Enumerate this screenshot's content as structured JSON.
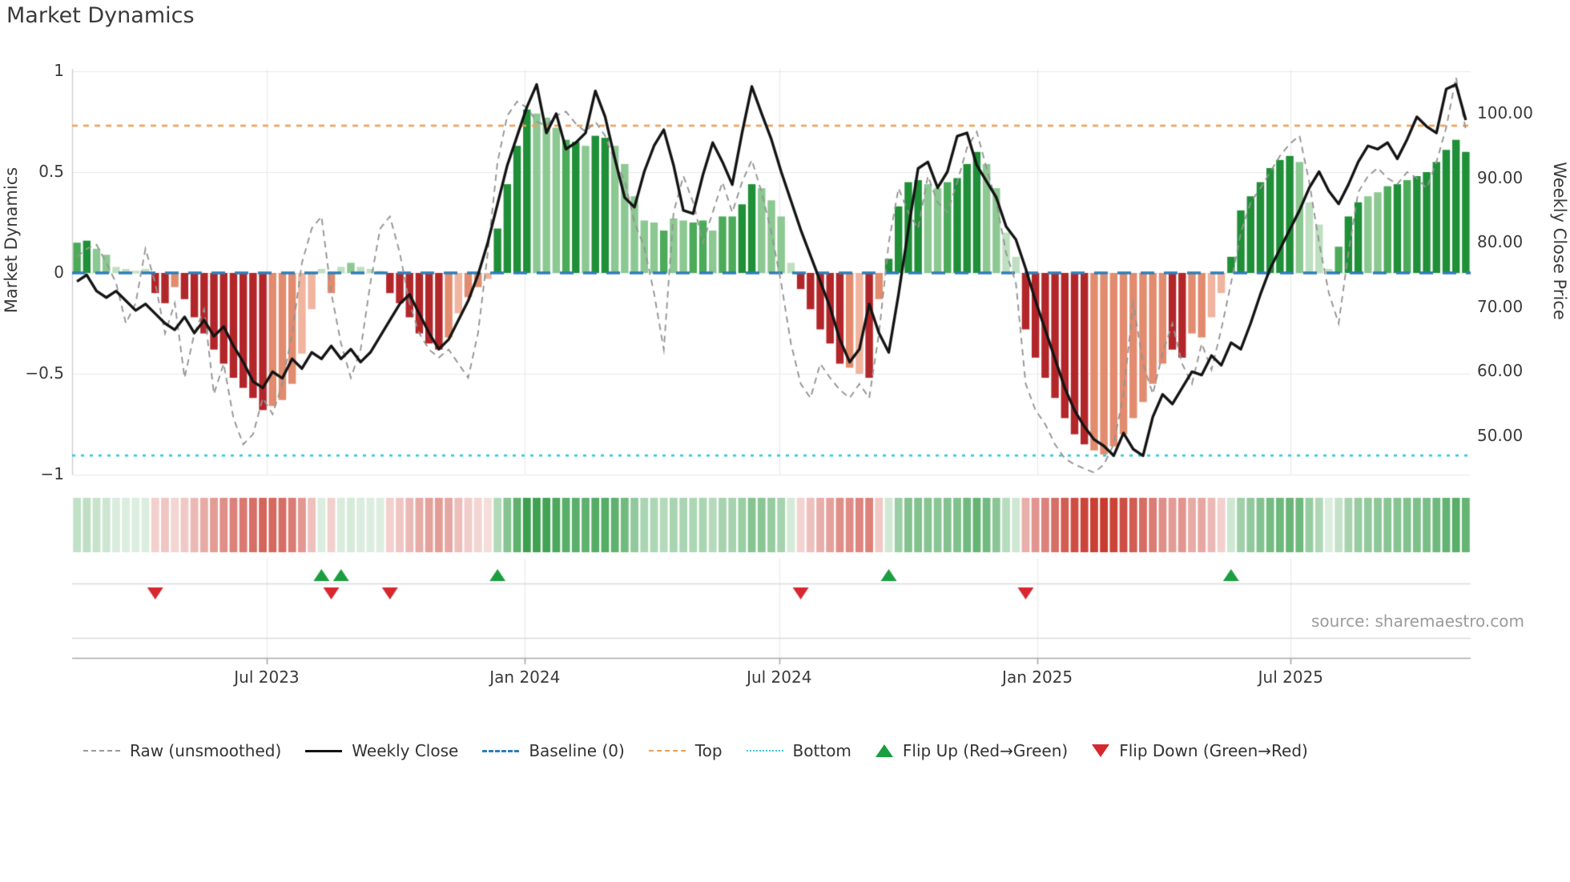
{
  "title": "Market Dynamics",
  "source": "source: sharemaestro.com",
  "axes": {
    "y_left": {
      "label": "Market Dynamics",
      "ticks": [
        "1",
        "0.5",
        "0",
        "−0.5",
        "−1"
      ],
      "tick_values": [
        1,
        0.5,
        0,
        -0.5,
        -1
      ]
    },
    "y_right": {
      "label": "Weekly Close Price",
      "ticks": [
        "100.00",
        "90.00",
        "80.00",
        "70.00",
        "60.00",
        "50.00"
      ],
      "tick_values": [
        100,
        90,
        80,
        70,
        60,
        50
      ]
    },
    "x": {
      "ticks": [
        "Jul 2023",
        "Jan 2024",
        "Jul 2024",
        "Jan 2025",
        "Jul 2025"
      ],
      "tick_weeks": [
        19.9,
        46.3,
        72.3,
        98.7,
        124.6
      ]
    }
  },
  "legend": {
    "items": [
      {
        "label": "Raw (unsmoothed)",
        "kind": "raw"
      },
      {
        "label": "Weekly Close",
        "kind": "close"
      },
      {
        "label": "Baseline (0)",
        "kind": "base"
      },
      {
        "label": "Top",
        "kind": "top"
      },
      {
        "label": "Bottom",
        "kind": "bottom"
      },
      {
        "label": "Flip Up (Red→Green)",
        "kind": "flip-up"
      },
      {
        "label": "Flip Down (Green→Red)",
        "kind": "flip-down"
      }
    ]
  },
  "palette": {
    "bar_shades": {
      "G": "#1f8f38",
      "g": "#4bab59",
      "l": "#8cc892",
      "e": "#bedfc0",
      "R": "#b2262a",
      "r": "#e28b6e",
      "p": "#f0b49f"
    },
    "baseline": "#2e7eb8",
    "top_line": "#f0a058",
    "bottom_line": "#35c8dc",
    "raw_line": "#949494",
    "price_line": "#141414",
    "flip_up": "#1a9e3f",
    "flip_down": "#d7282f",
    "grid": "#e9e9e9",
    "spine": "#a8a8a8",
    "lane_line": "#d9d9d9",
    "heat_green": [
      40,
      150,
      60
    ],
    "heat_red": [
      200,
      60,
      48
    ]
  },
  "chart_data": {
    "type": "bar+line combo with heatmap strip and flip markers",
    "weeks": 143,
    "ylim": [
      -1,
      1
    ],
    "baseline_value": 0,
    "top_level": 0.73,
    "bottom_level": -0.905,
    "price_axis": {
      "ref_price": 100,
      "ref_osc": 0.79,
      "osc_per_price": 0.032
    },
    "osc": [
      0.15,
      0.16,
      0.12,
      0.09,
      0.03,
      0.02,
      0.01,
      0.02,
      -0.1,
      -0.15,
      -0.07,
      -0.13,
      -0.22,
      -0.3,
      -0.38,
      -0.45,
      -0.52,
      -0.57,
      -0.62,
      -0.68,
      -0.66,
      -0.63,
      -0.55,
      -0.4,
      -0.18,
      0.02,
      -0.1,
      0.03,
      0.05,
      0.03,
      0.02,
      0.01,
      -0.1,
      -0.15,
      -0.22,
      -0.3,
      -0.35,
      -0.38,
      -0.32,
      -0.2,
      -0.12,
      -0.07,
      -0.03,
      0.22,
      0.44,
      0.63,
      0.81,
      0.79,
      0.77,
      0.72,
      0.66,
      0.65,
      0.63,
      0.68,
      0.67,
      0.63,
      0.54,
      0.38,
      0.26,
      0.25,
      0.21,
      0.27,
      0.26,
      0.25,
      0.26,
      0.21,
      0.28,
      0.28,
      0.34,
      0.44,
      0.42,
      0.36,
      0.28,
      0.05,
      -0.08,
      -0.18,
      -0.28,
      -0.35,
      -0.45,
      -0.47,
      -0.5,
      -0.52,
      -0.13,
      0.07,
      0.33,
      0.45,
      0.46,
      0.44,
      0.42,
      0.45,
      0.47,
      0.54,
      0.6,
      0.54,
      0.42,
      0.2,
      0.08,
      -0.28,
      -0.42,
      -0.52,
      -0.62,
      -0.72,
      -0.8,
      -0.85,
      -0.88,
      -0.9,
      -0.86,
      -0.8,
      -0.72,
      -0.64,
      -0.55,
      -0.45,
      -0.38,
      -0.42,
      -0.3,
      -0.32,
      -0.22,
      -0.1,
      0.08,
      0.31,
      0.38,
      0.45,
      0.52,
      0.56,
      0.58,
      0.55,
      0.35,
      0.24,
      0.02,
      0.13,
      0.28,
      0.35,
      0.38,
      0.4,
      0.43,
      0.44,
      0.46,
      0.48,
      0.5,
      0.55,
      0.61,
      0.66,
      0.6
    ],
    "bar_shade": [
      "g",
      "G",
      "l",
      "l",
      "e",
      "e",
      "e",
      "e",
      "R",
      "R",
      "r",
      "R",
      "R",
      "R",
      "R",
      "R",
      "R",
      "R",
      "R",
      "R",
      "r",
      "r",
      "r",
      "p",
      "p",
      "e",
      "r",
      "e",
      "l",
      "e",
      "e",
      "e",
      "R",
      "R",
      "R",
      "R",
      "R",
      "R",
      "r",
      "p",
      "r",
      "r",
      "p",
      "G",
      "G",
      "G",
      "G",
      "l",
      "l",
      "l",
      "g",
      "G",
      "l",
      "G",
      "G",
      "l",
      "l",
      "l",
      "l",
      "l",
      "g",
      "l",
      "l",
      "g",
      "g",
      "l",
      "g",
      "g",
      "G",
      "G",
      "l",
      "l",
      "l",
      "e",
      "R",
      "R",
      "R",
      "R",
      "R",
      "r",
      "p",
      "R",
      "r",
      "G",
      "G",
      "G",
      "G",
      "l",
      "l",
      "g",
      "G",
      "G",
      "G",
      "l",
      "l",
      "e",
      "e",
      "R",
      "R",
      "R",
      "R",
      "R",
      "R",
      "R",
      "r",
      "r",
      "r",
      "r",
      "r",
      "r",
      "r",
      "r",
      "R",
      "R",
      "r",
      "r",
      "p",
      "p",
      "G",
      "G",
      "G",
      "G",
      "G",
      "G",
      "G",
      "l",
      "e",
      "e",
      "e",
      "g",
      "G",
      "G",
      "l",
      "l",
      "g",
      "G",
      "g",
      "G",
      "G",
      "G",
      "G",
      "G",
      "G"
    ],
    "raw": [
      0.08,
      0.12,
      0.14,
      0.05,
      -0.05,
      -0.25,
      -0.15,
      0.12,
      -0.05,
      -0.3,
      -0.15,
      -0.52,
      -0.3,
      -0.18,
      -0.6,
      -0.45,
      -0.72,
      -0.85,
      -0.8,
      -0.62,
      -0.7,
      -0.55,
      -0.3,
      0.05,
      0.22,
      0.28,
      -0.1,
      -0.35,
      -0.52,
      -0.38,
      -0.05,
      0.22,
      0.28,
      0.1,
      -0.15,
      -0.3,
      -0.38,
      -0.42,
      -0.38,
      -0.45,
      -0.52,
      -0.3,
      0.1,
      0.55,
      0.78,
      0.85,
      0.82,
      0.75,
      0.73,
      0.78,
      0.8,
      0.74,
      0.7,
      0.75,
      0.68,
      0.55,
      0.46,
      0.25,
      0.13,
      -0.1,
      -0.38,
      0.3,
      0.48,
      0.35,
      0.15,
      0.3,
      0.45,
      0.3,
      0.45,
      0.56,
      0.4,
      0.2,
      -0.05,
      -0.35,
      -0.55,
      -0.62,
      -0.45,
      -0.52,
      -0.58,
      -0.62,
      -0.55,
      -0.62,
      -0.3,
      0.15,
      0.42,
      0.3,
      0.22,
      0.48,
      0.35,
      0.3,
      0.45,
      0.62,
      0.7,
      0.52,
      0.35,
      0.1,
      -0.05,
      -0.55,
      -0.68,
      -0.75,
      -0.85,
      -0.92,
      -0.95,
      -0.97,
      -0.99,
      -0.95,
      -0.85,
      -0.6,
      -0.15,
      -0.45,
      -0.6,
      -0.4,
      -0.25,
      -0.45,
      -0.55,
      -0.35,
      -0.48,
      -0.28,
      -0.05,
      0.2,
      0.35,
      0.42,
      0.5,
      0.58,
      0.64,
      0.68,
      0.45,
      0.15,
      -0.1,
      -0.25,
      0.1,
      0.4,
      0.48,
      0.52,
      0.47,
      0.44,
      0.5,
      0.47,
      0.42,
      0.55,
      0.72,
      0.97,
      0.71
    ],
    "price": [
      74.0,
      75.0,
      72.5,
      71.5,
      72.5,
      71.0,
      69.5,
      70.5,
      69.0,
      67.5,
      66.5,
      68.5,
      66.0,
      68.0,
      65.5,
      67.0,
      64.0,
      61.5,
      58.5,
      57.5,
      60.0,
      59.0,
      62.0,
      60.5,
      63.0,
      62.0,
      64.0,
      62.0,
      63.5,
      61.5,
      63.0,
      65.5,
      68.0,
      70.5,
      72.0,
      69.0,
      66.0,
      63.5,
      65.0,
      68.0,
      71.0,
      75.0,
      80.0,
      86.0,
      92.0,
      96.5,
      101.0,
      104.5,
      97.0,
      100.0,
      94.5,
      95.5,
      97.0,
      103.5,
      99.5,
      93.0,
      87.0,
      85.5,
      91.0,
      95.0,
      97.5,
      92.0,
      85.0,
      84.5,
      90.5,
      95.5,
      92.5,
      89.0,
      97.0,
      104.2,
      100.0,
      96.0,
      91.0,
      86.5,
      82.0,
      78.0,
      74.0,
      70.0,
      65.0,
      61.5,
      63.5,
      70.5,
      66.0,
      63.0,
      72.0,
      82.0,
      91.5,
      92.5,
      88.5,
      91.0,
      96.5,
      97.0,
      92.0,
      89.5,
      87.0,
      82.5,
      80.5,
      76.0,
      71.0,
      66.5,
      62.0,
      57.5,
      54.0,
      51.5,
      49.5,
      48.5,
      47.0,
      50.5,
      48.0,
      47.0,
      53.0,
      56.5,
      55.0,
      57.5,
      60.0,
      59.5,
      62.5,
      61.0,
      64.5,
      63.5,
      67.5,
      72.0,
      76.0,
      79.0,
      82.0,
      85.0,
      88.5,
      91.0,
      88.0,
      86.0,
      89.0,
      92.5,
      95.0,
      94.5,
      95.5,
      93.0,
      96.0,
      99.5,
      98.0,
      97.0,
      103.8,
      104.5,
      99.0
    ],
    "markers": {
      "flip_up_weeks": [
        25,
        27,
        43,
        83,
        118
      ],
      "flip_down_weeks": [
        8,
        26,
        32,
        74,
        97
      ]
    }
  }
}
